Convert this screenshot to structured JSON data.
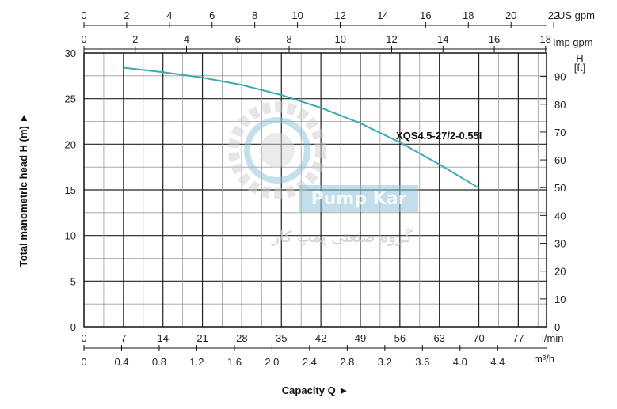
{
  "colors": {
    "curve": "#3aa9b5",
    "grid_major": "#222222",
    "grid_minor": "#9a9a9a",
    "watermark_blue": "#8fc3d9",
    "watermark_gray": "#cfcfcf"
  },
  "watermark": {
    "logo_text": "Pump Kar",
    "subtitle": "گروه صنعتی پمپ کار"
  },
  "chart_data": {
    "type": "line",
    "title": "",
    "xlabel": "Capacity Q  ►",
    "ylabel": "Total manometric head H (m)  ►",
    "ylabel_right_head": "H",
    "ylabel_right_unit": "[ft]",
    "grid": true,
    "xlim_lmin": [
      0,
      82
    ],
    "ylim_m": [
      0,
      30
    ],
    "series": [
      {
        "name": "XQS4.5-27/2-0.55I",
        "x_lmin": [
          7,
          14,
          21,
          28,
          35,
          42,
          49,
          56,
          63,
          70
        ],
        "y_m": [
          28.4,
          27.9,
          27.3,
          26.5,
          25.4,
          24.0,
          22.3,
          20.2,
          17.8,
          15.2
        ]
      }
    ],
    "axes": {
      "us_gpm": {
        "unit": "US gpm",
        "ticks": [
          "0",
          "2",
          "4",
          "6",
          "8",
          "10",
          "12",
          "14",
          "16",
          "18",
          "20",
          "22"
        ]
      },
      "imp_gpm": {
        "unit": "Imp gpm",
        "ticks": [
          "0",
          "2",
          "4",
          "6",
          "8",
          "10",
          "12",
          "14",
          "16",
          "18"
        ]
      },
      "lmin": {
        "unit": "l/min",
        "ticks": [
          "0",
          "7",
          "14",
          "21",
          "28",
          "35",
          "42",
          "49",
          "56",
          "63",
          "70",
          "77"
        ]
      },
      "m3h": {
        "unit": "m³/h",
        "ticks": [
          "0",
          "0.4",
          "0.8",
          "1.2",
          "1.6",
          "2.0",
          "2.4",
          "2.8",
          "3.2",
          "3.6",
          "4.0",
          "4.4"
        ]
      },
      "head_m": {
        "ticks": [
          "0",
          "5",
          "10",
          "15",
          "20",
          "25",
          "30"
        ]
      },
      "head_ft": {
        "ticks": [
          "0",
          "10",
          "20",
          "30",
          "40",
          "50",
          "60",
          "70",
          "80",
          "90"
        ]
      }
    }
  }
}
